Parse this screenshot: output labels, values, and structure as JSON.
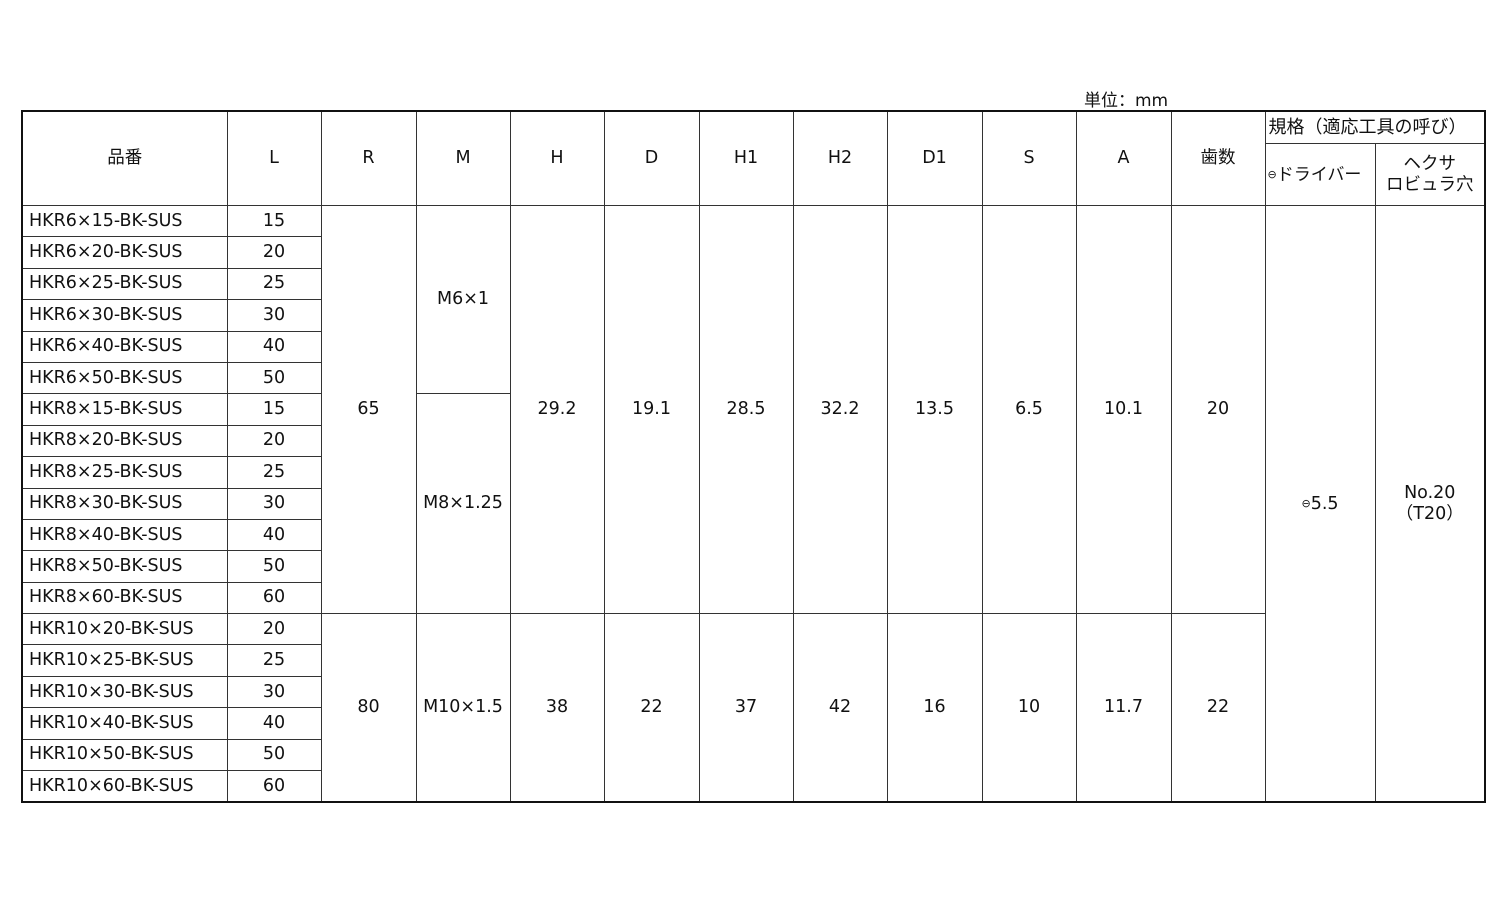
{
  "unit_label": "単位：mm",
  "headers": {
    "part_no": "品番",
    "L": "L",
    "R": "R",
    "M": "M",
    "H": "H",
    "D": "D",
    "H1": "H1",
    "H2": "H2",
    "D1": "D1",
    "S": "S",
    "A": "A",
    "teeth": "歯数",
    "spec": "規格（適応工具の呼び）",
    "driver_symbol": "⊖",
    "driver": "ドライバー",
    "hexalobular_line1": "ヘクサ",
    "hexalobular_line2": "ロビュラ穴"
  },
  "rows": [
    {
      "part_no": "HKR6×15-BK-SUS",
      "L": "15"
    },
    {
      "part_no": "HKR6×20-BK-SUS",
      "L": "20"
    },
    {
      "part_no": "HKR6×25-BK-SUS",
      "L": "25"
    },
    {
      "part_no": "HKR6×30-BK-SUS",
      "L": "30"
    },
    {
      "part_no": "HKR6×40-BK-SUS",
      "L": "40"
    },
    {
      "part_no": "HKR6×50-BK-SUS",
      "L": "50"
    },
    {
      "part_no": "HKR8×15-BK-SUS",
      "L": "15"
    },
    {
      "part_no": "HKR8×20-BK-SUS",
      "L": "20"
    },
    {
      "part_no": "HKR8×25-BK-SUS",
      "L": "25"
    },
    {
      "part_no": "HKR8×30-BK-SUS",
      "L": "30"
    },
    {
      "part_no": "HKR8×40-BK-SUS",
      "L": "40"
    },
    {
      "part_no": "HKR8×50-BK-SUS",
      "L": "50"
    },
    {
      "part_no": "HKR8×60-BK-SUS",
      "L": "60"
    },
    {
      "part_no": "HKR10×20-BK-SUS",
      "L": "20"
    },
    {
      "part_no": "HKR10×25-BK-SUS",
      "L": "25"
    },
    {
      "part_no": "HKR10×30-BK-SUS",
      "L": "30"
    },
    {
      "part_no": "HKR10×40-BK-SUS",
      "L": "40"
    },
    {
      "part_no": "HKR10×50-BK-SUS",
      "L": "50"
    },
    {
      "part_no": "HKR10×60-BK-SUS",
      "L": "60"
    }
  ],
  "thread_groups": [
    {
      "M": "M6×1",
      "rows": 6
    },
    {
      "M": "M8×1.25",
      "rows": 7
    },
    {
      "M": "M10×1.5",
      "rows": 6
    }
  ],
  "size_groups": [
    {
      "rows": 13,
      "R": "65",
      "H": "29.2",
      "D": "19.1",
      "H1": "28.5",
      "H2": "32.2",
      "D1": "13.5",
      "S": "6.5",
      "A": "10.1",
      "teeth": "20"
    },
    {
      "rows": 6,
      "R": "80",
      "H": "38",
      "D": "22",
      "H1": "37",
      "H2": "42",
      "D1": "16",
      "S": "10",
      "A": "11.7",
      "teeth": "22"
    }
  ],
  "tool": {
    "driver_symbol": "⊖",
    "driver_size": "5.5",
    "hexalobular_line1": "No.20",
    "hexalobular_line2": "（T20）"
  }
}
